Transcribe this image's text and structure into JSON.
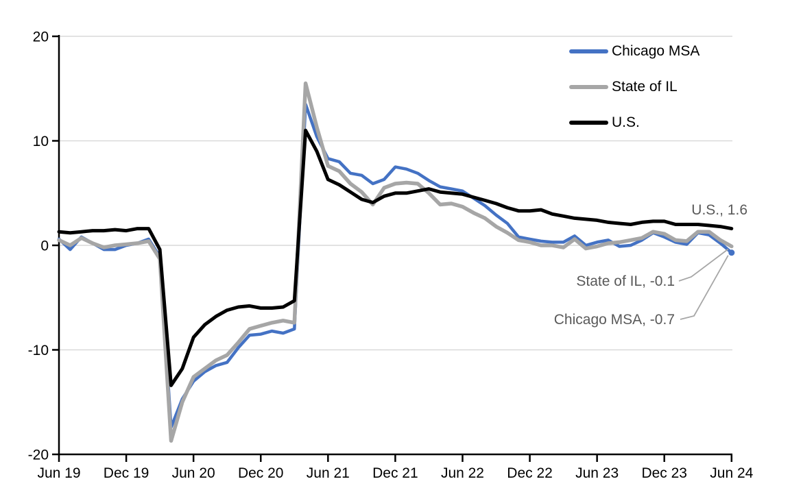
{
  "chart_data": {
    "type": "line",
    "title": "",
    "xlabel": "",
    "ylabel": "",
    "ylim": [
      -20,
      20
    ],
    "yticks": [
      20,
      10,
      0,
      -10,
      -20
    ],
    "gridlines": [
      20,
      10,
      0,
      -10
    ],
    "grid": "horizontal-only",
    "legend_position": "top-right-inside",
    "x": [
      "2019-06",
      "2019-07",
      "2019-08",
      "2019-09",
      "2019-10",
      "2019-11",
      "2019-12",
      "2020-01",
      "2020-02",
      "2020-03",
      "2020-04",
      "2020-05",
      "2020-06",
      "2020-07",
      "2020-08",
      "2020-09",
      "2020-10",
      "2020-11",
      "2020-12",
      "2021-01",
      "2021-02",
      "2021-03",
      "2021-04",
      "2021-05",
      "2021-06",
      "2021-07",
      "2021-08",
      "2021-09",
      "2021-10",
      "2021-11",
      "2021-12",
      "2022-01",
      "2022-02",
      "2022-03",
      "2022-04",
      "2022-05",
      "2022-06",
      "2022-07",
      "2022-08",
      "2022-09",
      "2022-10",
      "2022-11",
      "2022-12",
      "2023-01",
      "2023-02",
      "2023-03",
      "2023-04",
      "2023-05",
      "2023-06",
      "2023-07",
      "2023-08",
      "2023-09",
      "2023-10",
      "2023-11",
      "2023-12",
      "2024-01",
      "2024-02",
      "2024-03",
      "2024-04",
      "2024-05",
      "2024-06"
    ],
    "x_tick_indices": [
      0,
      6,
      12,
      18,
      24,
      30,
      36,
      42,
      48,
      54,
      60
    ],
    "x_tick_labels": [
      "Jun 19",
      "Dec 19",
      "Jun 20",
      "Dec 20",
      "Jun 21",
      "Dec 21",
      "Jun 22",
      "Dec 22",
      "Jun 23",
      "Dec 23",
      "Jun 24"
    ],
    "series": [
      {
        "name": "Chicago MSA",
        "color": "#4472C4",
        "stroke_width": 4.5,
        "end_dot": true,
        "values": [
          0.6,
          -0.4,
          0.8,
          0.2,
          -0.4,
          -0.4,
          0.0,
          0.2,
          0.6,
          -1.1,
          -17.4,
          -14.7,
          -13.0,
          -12.1,
          -11.5,
          -11.2,
          -9.8,
          -8.6,
          -8.5,
          -8.2,
          -8.4,
          -8.0,
          13.5,
          10.4,
          8.3,
          8.0,
          6.9,
          6.7,
          5.9,
          6.3,
          7.5,
          7.3,
          6.9,
          6.2,
          5.6,
          5.4,
          5.2,
          4.5,
          3.8,
          2.9,
          2.1,
          0.8,
          0.6,
          0.4,
          0.3,
          0.3,
          0.9,
          0.0,
          0.3,
          0.5,
          -0.1,
          0.0,
          0.5,
          1.2,
          0.8,
          0.3,
          0.1,
          1.2,
          1.0,
          0.2,
          -0.7
        ]
      },
      {
        "name": "State of IL",
        "color": "#A6A6A6",
        "stroke_width": 5.5,
        "end_dot": false,
        "values": [
          0.5,
          0.0,
          0.7,
          0.2,
          -0.2,
          0.0,
          0.1,
          0.2,
          0.4,
          -1.3,
          -18.7,
          -15.0,
          -12.6,
          -11.8,
          -11.0,
          -10.5,
          -9.3,
          -8.0,
          -7.7,
          -7.4,
          -7.2,
          -7.4,
          15.5,
          11.3,
          7.6,
          7.1,
          5.9,
          5.1,
          3.9,
          5.5,
          5.9,
          6.0,
          5.9,
          5.0,
          3.9,
          4.0,
          3.7,
          3.1,
          2.6,
          1.8,
          1.2,
          0.5,
          0.3,
          0.0,
          0.0,
          -0.2,
          0.6,
          -0.3,
          -0.1,
          0.2,
          0.3,
          0.5,
          0.7,
          1.3,
          1.1,
          0.5,
          0.4,
          1.3,
          1.3,
          0.5,
          -0.1
        ]
      },
      {
        "name": "U.S.",
        "color": "#000000",
        "stroke_width": 5,
        "end_dot": false,
        "values": [
          1.3,
          1.2,
          1.3,
          1.4,
          1.4,
          1.5,
          1.4,
          1.6,
          1.6,
          -0.4,
          -13.4,
          -11.8,
          -8.8,
          -7.6,
          -6.8,
          -6.2,
          -5.9,
          -5.8,
          -6.0,
          -6.0,
          -5.9,
          -5.3,
          11.0,
          9.0,
          6.3,
          5.8,
          5.1,
          4.4,
          4.1,
          4.7,
          5.0,
          5.0,
          5.2,
          5.4,
          5.1,
          5.0,
          4.9,
          4.6,
          4.3,
          4.0,
          3.6,
          3.3,
          3.3,
          3.4,
          3.0,
          2.8,
          2.6,
          2.5,
          2.4,
          2.2,
          2.1,
          2.0,
          2.2,
          2.3,
          2.3,
          2.0,
          2.0,
          2.0,
          1.9,
          1.8,
          1.6
        ]
      }
    ],
    "annotations": [
      {
        "series": "U.S.",
        "text": "U.S., 1.6",
        "value": 1.6,
        "has_leader": false
      },
      {
        "series": "State of IL",
        "text": "State of IL, -0.1",
        "value": -0.1,
        "has_leader": true
      },
      {
        "series": "Chicago MSA",
        "text": "Chicago MSA, -0.7",
        "value": -0.7,
        "has_leader": true
      }
    ]
  },
  "legend": {
    "items": [
      {
        "label": "Chicago MSA"
      },
      {
        "label": "State of IL"
      },
      {
        "label": "U.S."
      }
    ]
  },
  "colors": {
    "chicago_msa": "#4472C4",
    "state_of_il": "#A6A6A6",
    "us": "#000000",
    "gridline": "#D9D9D9",
    "axis": "#000000",
    "annotation_text": "#595959",
    "leader_line": "#A6A6A6",
    "background": "#FFFFFF"
  }
}
